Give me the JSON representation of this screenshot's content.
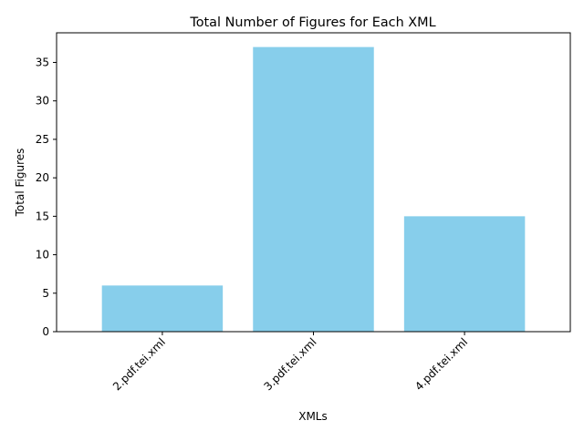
{
  "chart_data": {
    "type": "bar",
    "title": "Total Number of Figures for Each XML",
    "xlabel": "XMLs",
    "ylabel": "Total Figures",
    "categories": [
      "2.pdf.tei.xml",
      "3.pdf.tei.xml",
      "4.pdf.tei.xml"
    ],
    "values": [
      6,
      37,
      15
    ],
    "ylim": [
      0,
      38.85
    ],
    "yticks": [
      0,
      5,
      10,
      15,
      20,
      25,
      30,
      35
    ],
    "bar_color": "#87CEEB",
    "grid": false,
    "legend": "none"
  }
}
